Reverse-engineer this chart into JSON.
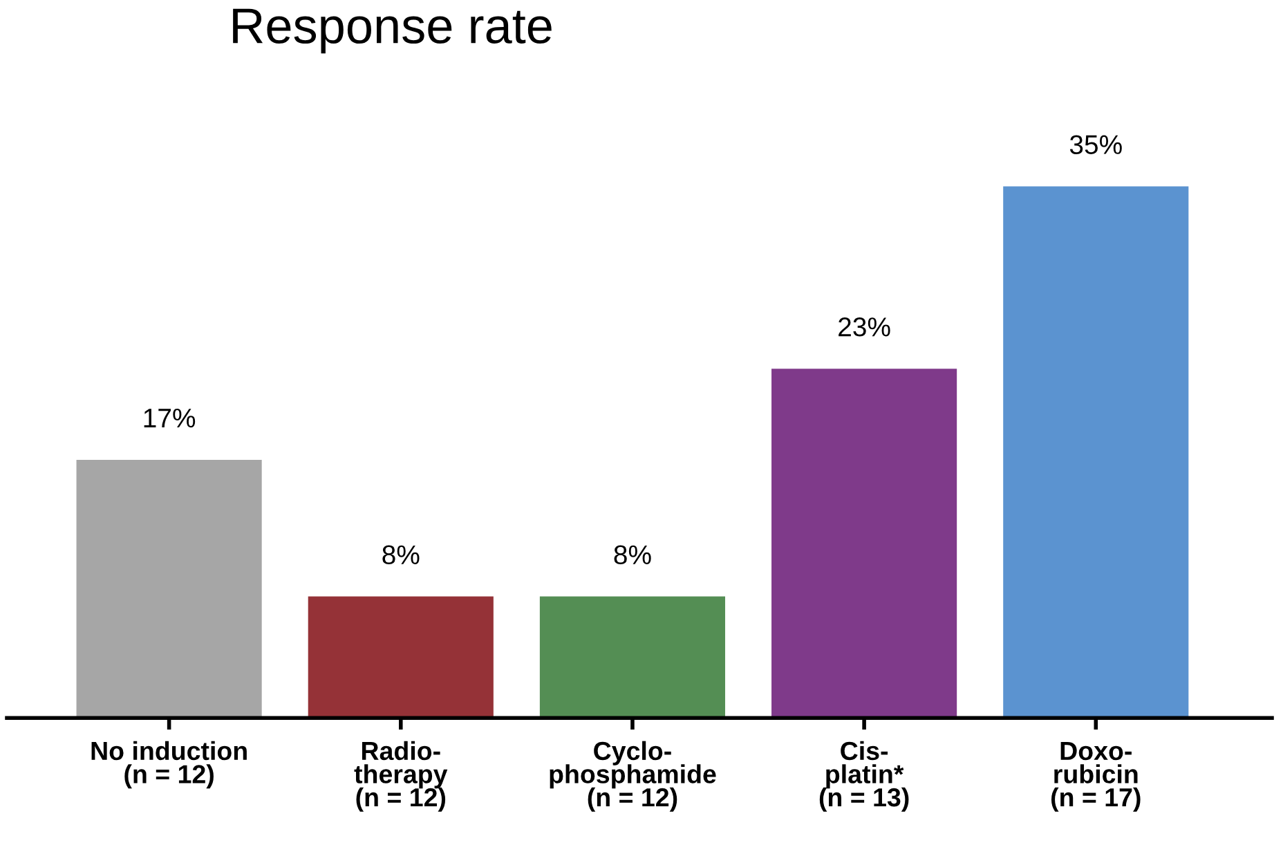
{
  "chart_data": {
    "type": "bar",
    "title": "Response rate",
    "categories": [
      "No induction\n(n = 12)",
      "Radio-\ntherapy\n(n = 12)",
      "Cyclo-\nphosphamide\n(n = 12)",
      "Cis-\nplatin*\n(n = 13)",
      "Doxo-\nrubicin\n(n = 17)"
    ],
    "values": [
      17,
      8,
      8,
      23,
      35
    ],
    "colors": [
      "#a6a6a6",
      "#953237",
      "#548e54",
      "#7f3a8a",
      "#5b93d0"
    ],
    "value_labels": [
      "17%",
      "8%",
      "8%",
      "23%",
      "35%"
    ],
    "grid": false,
    "legend": false
  }
}
